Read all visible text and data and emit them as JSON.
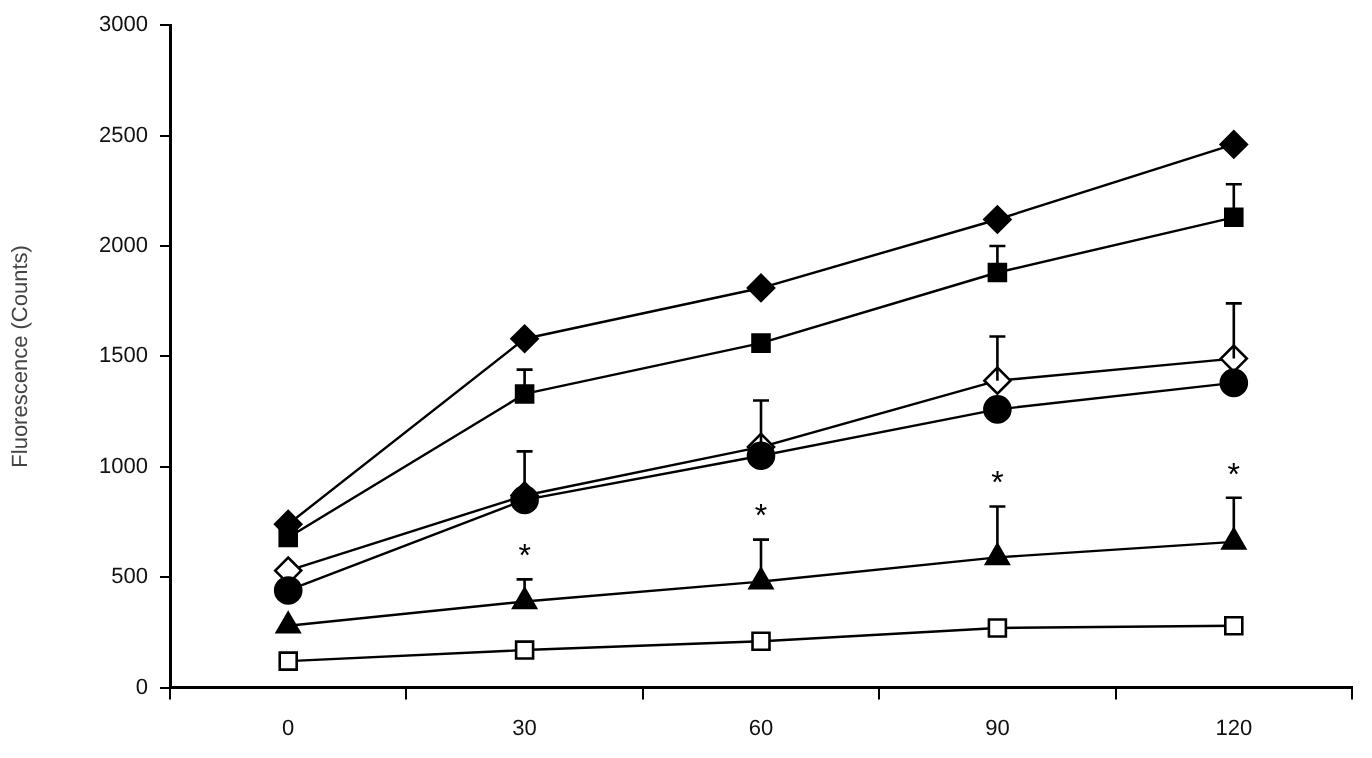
{
  "chart_data": {
    "type": "line",
    "ylabel": "Fluorescence (Counts)",
    "categories": [
      "0",
      "30",
      "60",
      "90",
      "120"
    ],
    "ylim": [
      0,
      3000
    ],
    "yticks": [
      0,
      500,
      1000,
      1500,
      2000,
      2500,
      3000
    ],
    "grid": false,
    "legend": false,
    "series": [
      {
        "color": "#000000",
        "marker": "diamond",
        "values": [
          740,
          1580,
          1810,
          2120,
          2460
        ]
      },
      {
        "color": "#000000",
        "marker": "square",
        "values": [
          680,
          1330,
          1560,
          1880,
          2130
        ],
        "errors": [
          null,
          [
            1330,
            1440
          ],
          null,
          [
            1880,
            2000
          ],
          [
            2130,
            2280
          ]
        ]
      },
      {
        "color": "#ffffff",
        "marker": "diamond",
        "values": [
          530,
          870,
          1090,
          1390,
          1490
        ],
        "errors": [
          null,
          [
            870,
            1070
          ],
          [
            1090,
            1300
          ],
          [
            1390,
            1590
          ],
          [
            1490,
            1740
          ]
        ]
      },
      {
        "color": "#000000",
        "marker": "circle",
        "values": [
          440,
          850,
          1050,
          1260,
          1380
        ]
      },
      {
        "color": "#000000",
        "marker": "triangle",
        "values": [
          280,
          390,
          480,
          590,
          660
        ],
        "errors": [
          null,
          [
            390,
            490
          ],
          [
            480,
            670
          ],
          [
            590,
            820
          ],
          [
            660,
            860
          ]
        ]
      },
      {
        "color": "#ffffff",
        "marker": "square",
        "values": [
          120,
          170,
          210,
          270,
          280
        ]
      }
    ],
    "annotations": [
      {
        "text": "*",
        "x": "30",
        "y": 490
      },
      {
        "text": "*",
        "x": "60",
        "y": 670
      },
      {
        "text": "*",
        "x": "90",
        "y": 820
      },
      {
        "text": "*",
        "x": "120",
        "y": 860
      }
    ]
  }
}
